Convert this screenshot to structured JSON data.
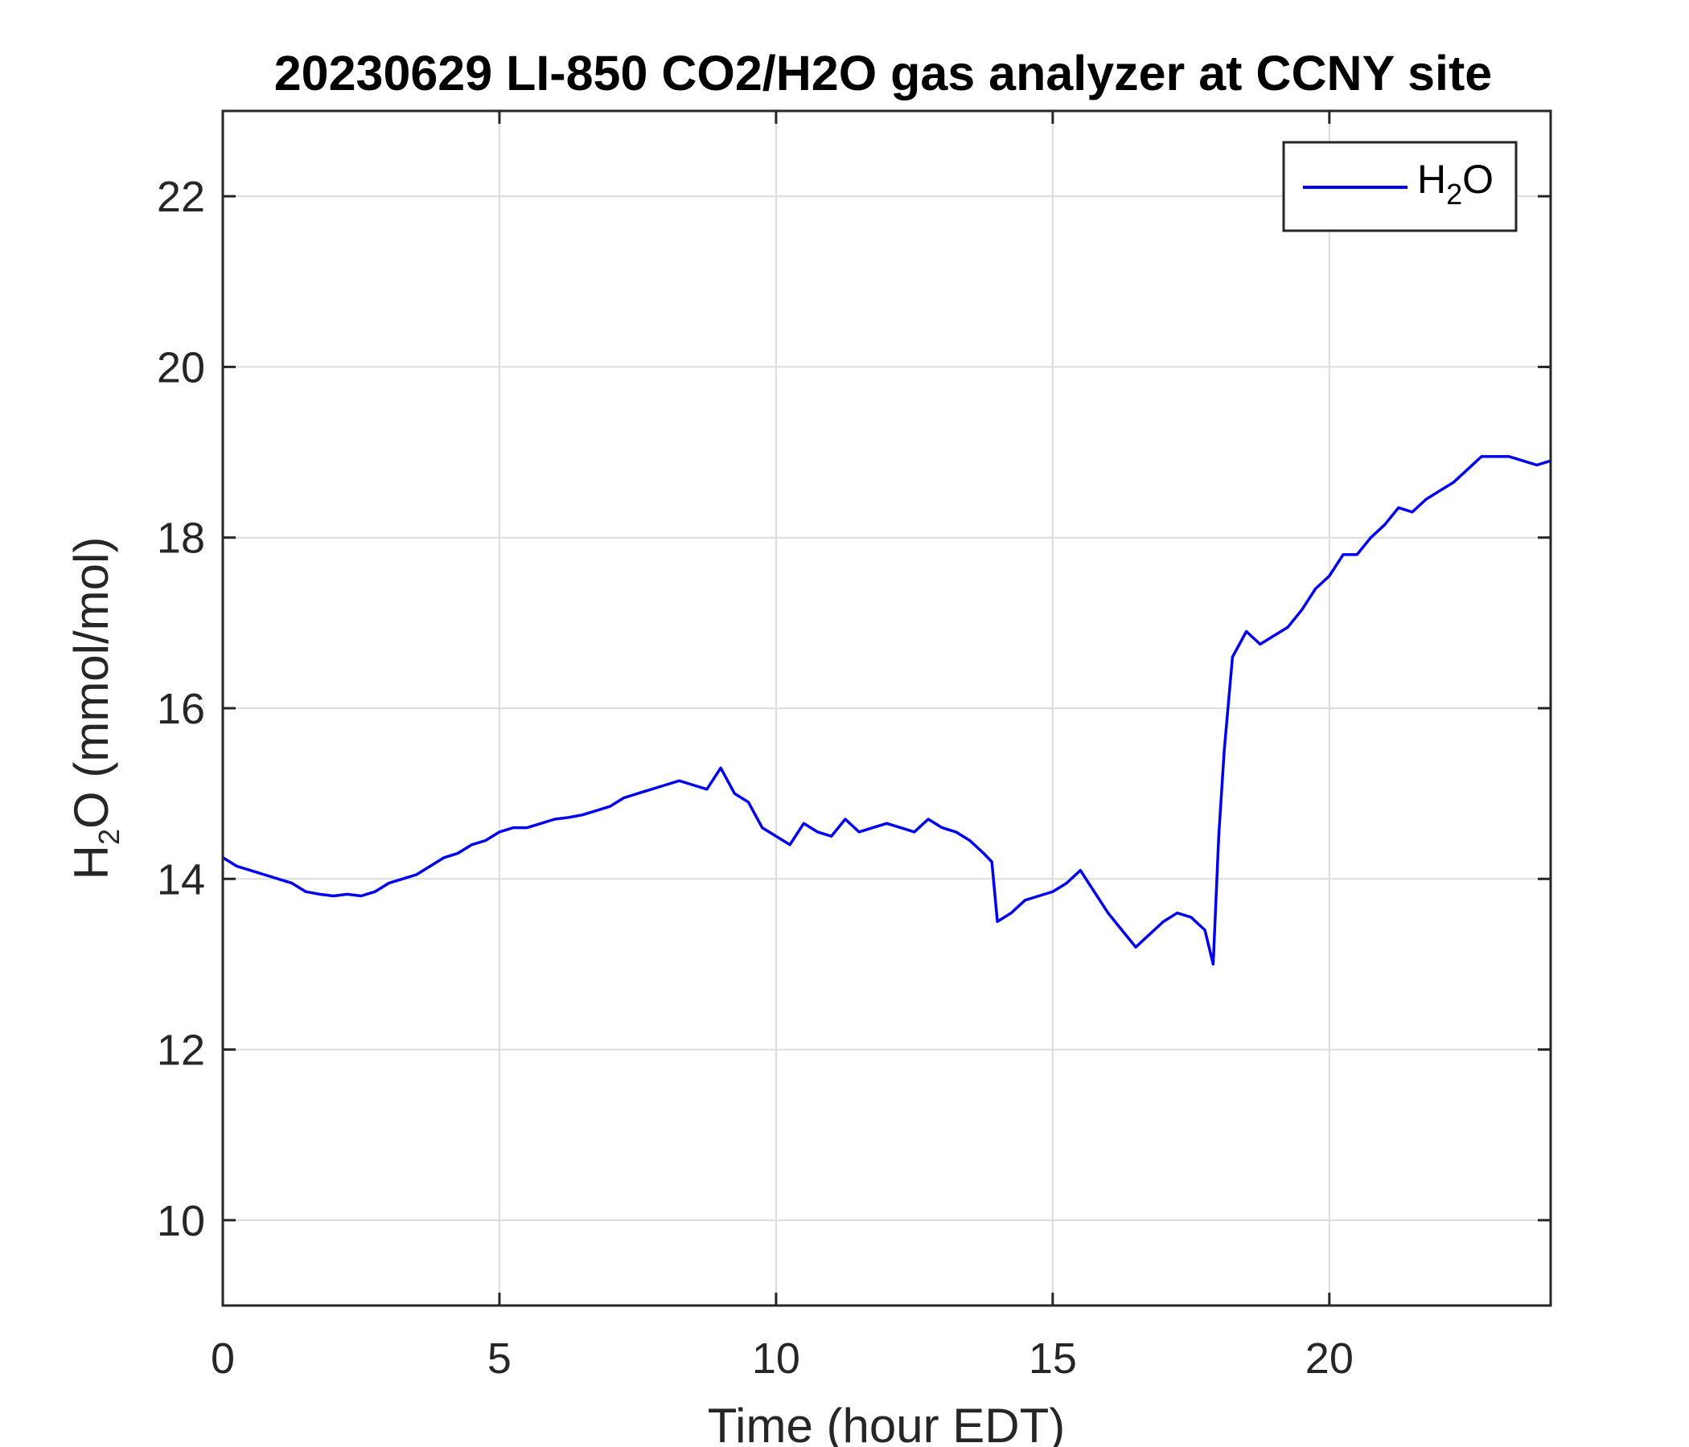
{
  "chart_data": {
    "type": "line",
    "title": "20230629 LI-850 CO2/H2O gas analyzer at CCNY site",
    "xlabel": "Time (hour EDT)",
    "ylabel": {
      "main": "H",
      "sub": "2",
      "rest": "O (mmol/mol)"
    },
    "xlim": [
      0,
      24
    ],
    "ylim": [
      9,
      23
    ],
    "xticks": [
      0,
      5,
      10,
      15,
      20
    ],
    "yticks": [
      10,
      12,
      14,
      16,
      18,
      20,
      22
    ],
    "grid": true,
    "legend_position": "top-right",
    "series": [
      {
        "name": {
          "main": "H",
          "sub": "2",
          "rest": "O"
        },
        "color": "#0000ee",
        "x": [
          0,
          0.25,
          0.5,
          0.75,
          1.0,
          1.25,
          1.5,
          1.75,
          2.0,
          2.25,
          2.5,
          2.75,
          3.0,
          3.25,
          3.5,
          3.75,
          4.0,
          4.25,
          4.5,
          4.75,
          5.0,
          5.25,
          5.5,
          5.75,
          6.0,
          6.25,
          6.5,
          6.75,
          7.0,
          7.25,
          7.5,
          7.75,
          8.0,
          8.25,
          8.5,
          8.75,
          9.0,
          9.25,
          9.5,
          9.75,
          10.0,
          10.25,
          10.5,
          10.75,
          11.0,
          11.25,
          11.5,
          11.75,
          12.0,
          12.25,
          12.5,
          12.75,
          13.0,
          13.25,
          13.5,
          13.75,
          13.9,
          14.0,
          14.25,
          14.5,
          14.75,
          15.0,
          15.25,
          15.5,
          15.75,
          16.0,
          16.25,
          16.5,
          16.75,
          17.0,
          17.25,
          17.5,
          17.75,
          17.9,
          18.0,
          18.1,
          18.25,
          18.5,
          18.75,
          19.0,
          19.25,
          19.5,
          19.75,
          20.0,
          20.25,
          20.5,
          20.75,
          21.0,
          21.25,
          21.5,
          21.75,
          22.0,
          22.25,
          22.5,
          22.75,
          23.0,
          23.25,
          23.5,
          23.75,
          24.0
        ],
        "y": [
          14.25,
          14.15,
          14.1,
          14.05,
          14.0,
          13.95,
          13.85,
          13.82,
          13.8,
          13.82,
          13.8,
          13.85,
          13.95,
          14.0,
          14.05,
          14.15,
          14.25,
          14.3,
          14.4,
          14.45,
          14.55,
          14.6,
          14.6,
          14.65,
          14.7,
          14.72,
          14.75,
          14.8,
          14.85,
          14.95,
          15.0,
          15.05,
          15.1,
          15.15,
          15.1,
          15.05,
          15.3,
          15.0,
          14.9,
          14.6,
          14.5,
          14.4,
          14.65,
          14.55,
          14.5,
          14.7,
          14.55,
          14.6,
          14.65,
          14.6,
          14.55,
          14.7,
          14.6,
          14.55,
          14.45,
          14.3,
          14.2,
          13.5,
          13.6,
          13.75,
          13.8,
          13.85,
          13.95,
          14.1,
          13.85,
          13.6,
          13.4,
          13.2,
          13.35,
          13.5,
          13.6,
          13.55,
          13.4,
          13.0,
          14.5,
          15.5,
          16.6,
          16.9,
          16.75,
          16.85,
          16.95,
          17.15,
          17.4,
          17.55,
          17.8,
          17.8,
          18.0,
          18.15,
          18.35,
          18.3,
          18.45,
          18.55,
          18.65,
          18.8,
          18.95,
          18.95,
          18.95,
          18.9,
          18.85,
          18.9
        ]
      }
    ]
  }
}
